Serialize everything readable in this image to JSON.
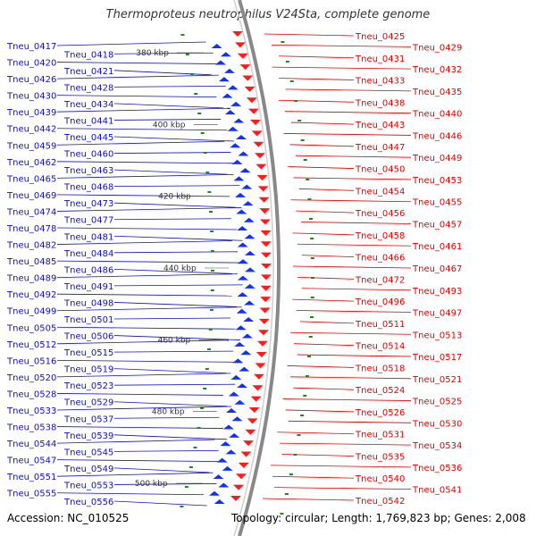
{
  "title": "Thermoproteus neutrophilus V24Sta, complete genome",
  "accession": "Accession: NC_010525",
  "topology": "Topology: circular; Length: 1,769,823 bp; Genes: 2,008",
  "colors": {
    "left_label": "#1010c0",
    "right_label": "#e00000",
    "left_arrow": "#1030ff",
    "right_arrow": "#ff1a1a",
    "tick": "#1a8a1a",
    "backbone": "#888888"
  },
  "scale_labels": [
    "380 kbp",
    "400 kbp",
    "420 kbp",
    "440 kbp",
    "460 kbp",
    "480 kbp",
    "500 kbp"
  ],
  "left_genes": [
    "Tneu_0417",
    "Tneu_0418",
    "Tneu_0420",
    "Tneu_0421",
    "Tneu_0426",
    "Tneu_0428",
    "Tneu_0430",
    "Tneu_0434",
    "Tneu_0439",
    "Tneu_0441",
    "Tneu_0442",
    "Tneu_0445",
    "Tneu_0459",
    "Tneu_0460",
    "Tneu_0462",
    "Tneu_0463",
    "Tneu_0465",
    "Tneu_0468",
    "Tneu_0469",
    "Tneu_0473",
    "Tneu_0474",
    "Tneu_0477",
    "Tneu_0478",
    "Tneu_0481",
    "Tneu_0482",
    "Tneu_0484",
    "Tneu_0485",
    "Tneu_0486",
    "Tneu_0489",
    "Tneu_0491",
    "Tneu_0492",
    "Tneu_0498",
    "Tneu_0499",
    "Tneu_0501",
    "Tneu_0505",
    "Tneu_0506",
    "Tneu_0512",
    "Tneu_0515",
    "Tneu_0516",
    "Tneu_0519",
    "Tneu_0520",
    "Tneu_0523",
    "Tneu_0528",
    "Tneu_0529",
    "Tneu_0533",
    "Tneu_0537",
    "Tneu_0538",
    "Tneu_0539",
    "Tneu_0544",
    "Tneu_0545",
    "Tneu_0547",
    "Tneu_0549",
    "Tneu_0551",
    "Tneu_0553",
    "Tneu_0555",
    "Tneu_0556"
  ],
  "right_genes": [
    "Tneu_0425",
    "Tneu_0429",
    "Tneu_0431",
    "Tneu_0432",
    "Tneu_0433",
    "Tneu_0435",
    "Tneu_0438",
    "Tneu_0440",
    "Tneu_0443",
    "Tneu_0446",
    "Tneu_0447",
    "Tneu_0449",
    "Tneu_0450",
    "Tneu_0453",
    "Tneu_0454",
    "Tneu_0455",
    "Tneu_0456",
    "Tneu_0457",
    "Tneu_0458",
    "Tneu_0461",
    "Tneu_0466",
    "Tneu_0467",
    "Tneu_0472",
    "Tneu_0493",
    "Tneu_0496",
    "Tneu_0497",
    "Tneu_0511",
    "Tneu_0513",
    "Tneu_0514",
    "Tneu_0517",
    "Tneu_0518",
    "Tneu_0521",
    "Tneu_0524",
    "Tneu_0525",
    "Tneu_0526",
    "Tneu_0530",
    "Tneu_0531",
    "Tneu_0534",
    "Tneu_0535",
    "Tneu_0536",
    "Tneu_0540",
    "Tneu_0541",
    "Tneu_0542"
  ]
}
